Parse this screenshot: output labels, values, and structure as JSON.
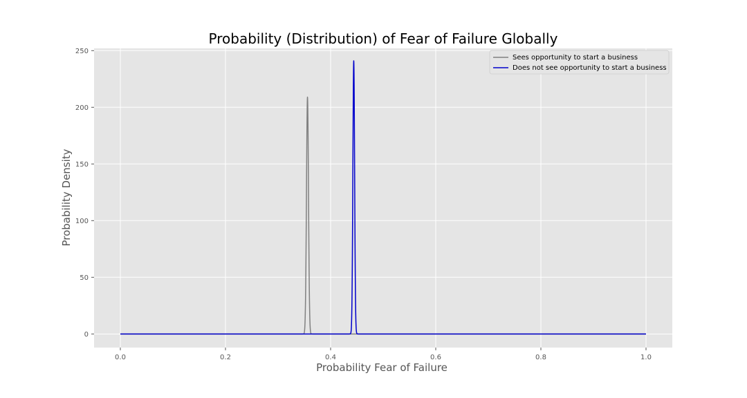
{
  "chart_data": {
    "type": "line",
    "title": "Probability (Distribution) of Fear of Failure Globally",
    "xlabel": "Probability Fear of Failure",
    "ylabel": "Probability Density",
    "xlim": [
      -0.05,
      1.05
    ],
    "ylim": [
      -12,
      252
    ],
    "x_ticks": [
      0.0,
      0.2,
      0.4,
      0.6,
      0.8,
      1.0
    ],
    "x_tick_labels": [
      "0.0",
      "0.2",
      "0.4",
      "0.6",
      "0.8",
      "1.0"
    ],
    "y_ticks": [
      0,
      50,
      100,
      150,
      200,
      250
    ],
    "y_tick_labels": [
      "0",
      "50",
      "100",
      "150",
      "200",
      "250"
    ],
    "grid": true,
    "background_color": "#e5e5e5",
    "legend_position": "top-right",
    "series": [
      {
        "name": "Sees opportunity to start a business",
        "color": "#808080",
        "distribution": "normal",
        "mean": 0.356,
        "peak_density": 209,
        "x_range": [
          0.0,
          1.0
        ]
      },
      {
        "name": "Does not see opportunity to start a business",
        "color": "#0000cc",
        "distribution": "normal",
        "mean": 0.444,
        "peak_density": 241,
        "x_range": [
          0.0,
          1.0
        ]
      }
    ]
  }
}
